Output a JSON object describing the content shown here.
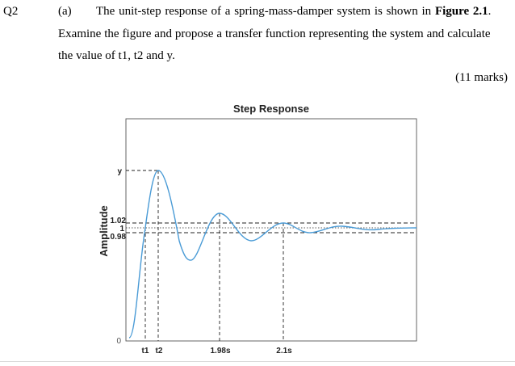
{
  "question": {
    "number": "Q2",
    "part": "(a)",
    "line1_prefix": "The unit-step response of a spring-mass-damper system is shown in ",
    "line1_bold": "Figure 2.1",
    "line1_suffix": ".",
    "line2": "Examine the figure and propose a transfer function representing the system and calculate",
    "line3": "the value of t1, t2 and y.",
    "marks": "(11 marks)"
  },
  "chart_data": {
    "type": "line",
    "title": "Step Response",
    "xlabel": "",
    "ylabel": "Amplitude",
    "y_tick_labels": [
      "0",
      "0.98",
      "1",
      "1.02",
      "y"
    ],
    "x_tick_labels": [
      "t1",
      "t2",
      "1.98s",
      "2.1s"
    ],
    "reference_lines": [
      0.98,
      1.0,
      1.02
    ],
    "series": [
      {
        "values_description": "underdamped second-order step response",
        "color": "#4a9bd6"
      }
    ],
    "annotations": [
      "t1",
      "t2",
      "1.98s",
      "2.1s",
      "y",
      "1.02",
      "1",
      "0.98",
      "0"
    ]
  }
}
